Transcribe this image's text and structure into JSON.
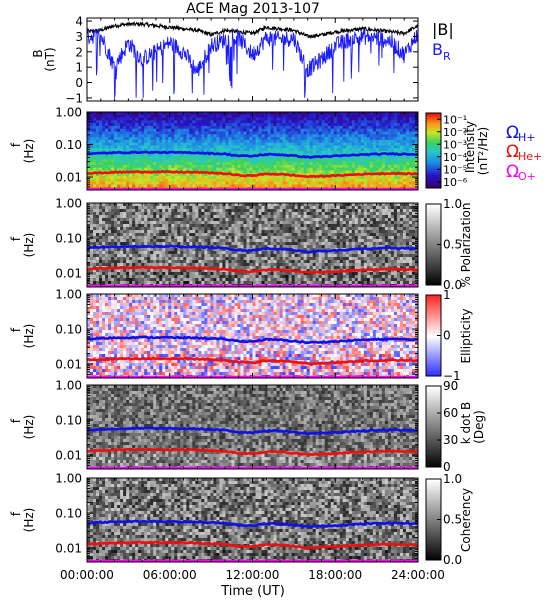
{
  "title": "ACE Mag 2013-107",
  "time_axis": {
    "ticks": [
      "00:00:00",
      "06:00:00",
      "12:00:00",
      "18:00:00",
      "24:00:00"
    ],
    "label": "Time (UT)",
    "range_hours": [
      0,
      24
    ]
  },
  "legend": {
    "b_total": "|B|",
    "b_r": "B",
    "b_r_sub": "R",
    "omega": "Ω",
    "h_sub": "H+",
    "he_sub": "He+",
    "o_sub": "O+"
  },
  "colors": {
    "b_total": "#000000",
    "b_r": "#1a1aff",
    "h_line": "#1010e8",
    "he_line": "#ee1010",
    "o_line": "#ff00ff",
    "background": "#ffffff"
  },
  "panels": [
    {
      "id": "bfield",
      "ylabel": "B",
      "ylabel_unit": "(nT)"
    },
    {
      "id": "intensity",
      "ylabel": "f",
      "ylabel_unit": "(Hz)",
      "colorbar_label": "Intensity",
      "colorbar_unit": "(nT²/Hz)"
    },
    {
      "id": "polarization",
      "ylabel": "f",
      "ylabel_unit": "(Hz)",
      "colorbar_label": "% Polarization"
    },
    {
      "id": "ellipticity",
      "ylabel": "f",
      "ylabel_unit": "(Hz)",
      "colorbar_label": "Ellipticity"
    },
    {
      "id": "kdotb",
      "ylabel": "f",
      "ylabel_unit": "(Hz)",
      "colorbar_label": "k dot B",
      "colorbar_unit": "(Deg)"
    },
    {
      "id": "coherency",
      "ylabel": "f",
      "ylabel_unit": "(Hz)",
      "colorbar_label": "Coherency"
    }
  ],
  "colorbars": {
    "intensity": {
      "ticks": [
        "10⁻¹",
        "10⁻²",
        "10⁻³",
        "10⁻⁴",
        "10⁻⁵",
        "10⁻⁶"
      ],
      "range_log10": [
        -6.5,
        -0.5
      ]
    },
    "polarization": {
      "ticks": [
        "1.0",
        "0.5",
        "0.0"
      ],
      "range": [
        0,
        1
      ]
    },
    "ellipticity": {
      "ticks": [
        "1",
        "0",
        "−1"
      ],
      "range": [
        -1,
        1
      ]
    },
    "kdotb": {
      "ticks": [
        "90",
        "60",
        "30",
        "0"
      ],
      "range": [
        0,
        90
      ]
    },
    "coherency": {
      "ticks": [
        "1.0",
        "0.5",
        "0.0"
      ],
      "range": [
        0,
        1
      ]
    }
  },
  "chart_data": {
    "type": "line",
    "title": "ACE Mag 2013-107",
    "xlabel": "Time (UT)",
    "xlim": [
      0,
      24
    ],
    "x_ticks": [
      "00:00:00",
      "06:00:00",
      "12:00:00",
      "18:00:00",
      "24:00:00"
    ],
    "b_panel": {
      "ylabel": "B (nT)",
      "ylim": [
        -1.2,
        4.2
      ],
      "y_ticks": [
        "4",
        "3",
        "2",
        "1",
        "0",
        "−1"
      ],
      "series": [
        {
          "name": "|B|",
          "x": [
            0,
            1,
            2,
            3,
            4,
            5,
            6,
            7,
            8,
            9,
            10,
            11,
            12,
            13,
            14,
            15,
            16,
            17,
            18,
            19,
            20,
            21,
            22,
            23,
            24
          ],
          "values": [
            3.3,
            3.4,
            3.7,
            3.8,
            3.8,
            3.7,
            3.6,
            3.5,
            3.4,
            3.1,
            3.4,
            3.3,
            3.2,
            3.6,
            3.5,
            3.4,
            3.0,
            3.1,
            3.3,
            3.4,
            3.5,
            3.4,
            3.3,
            3.2,
            3.7
          ]
        },
        {
          "name": "B",
          "x": [
            0,
            1,
            2,
            3,
            4,
            5,
            6,
            7,
            8,
            9,
            10,
            11,
            12,
            13,
            14,
            15,
            16,
            17,
            18,
            19,
            20,
            21,
            22,
            23,
            24
          ],
          "values": [
            3.0,
            3.1,
            1.0,
            2.6,
            1.5,
            2.0,
            2.6,
            2.0,
            0.7,
            2.4,
            2.8,
            2.9,
            1.8,
            2.9,
            2.8,
            2.9,
            0.8,
            1.5,
            2.4,
            2.8,
            3.0,
            2.9,
            2.7,
            1.8,
            3.2
          ]
        }
      ]
    },
    "freq_axis": {
      "ylabel": "f (Hz)",
      "scale": "log",
      "ylim": [
        0.004,
        1.0
      ],
      "y_ticks": [
        "1.00",
        "0.10",
        "0.01"
      ]
    },
    "gyrofrequency_lines": [
      {
        "name": "H+",
        "x": [
          0,
          2,
          4,
          6,
          8,
          10,
          11,
          12,
          13,
          14,
          16,
          18,
          20,
          22,
          24
        ],
        "values": [
          0.052,
          0.056,
          0.058,
          0.057,
          0.056,
          0.051,
          0.045,
          0.044,
          0.05,
          0.049,
          0.041,
          0.044,
          0.049,
          0.052,
          0.05
        ]
      },
      {
        "name": "He+",
        "x": [
          0,
          2,
          4,
          6,
          8,
          10,
          11,
          12,
          13,
          14,
          16,
          18,
          20,
          22,
          24
        ],
        "values": [
          0.013,
          0.014,
          0.0145,
          0.0143,
          0.014,
          0.0128,
          0.0113,
          0.011,
          0.0125,
          0.0123,
          0.0103,
          0.011,
          0.0123,
          0.013,
          0.0125
        ]
      },
      {
        "name": "O+",
        "x": [
          0,
          2,
          4,
          6,
          8,
          10,
          11,
          12,
          13,
          14,
          16,
          18,
          20,
          22,
          24
        ],
        "values": [
          0.0033,
          0.0035,
          0.0036,
          0.0036,
          0.0035,
          0.0032,
          0.0028,
          0.0028,
          0.0031,
          0.0031,
          0.0026,
          0.0028,
          0.0031,
          0.0033,
          0.0031
        ]
      }
    ]
  }
}
